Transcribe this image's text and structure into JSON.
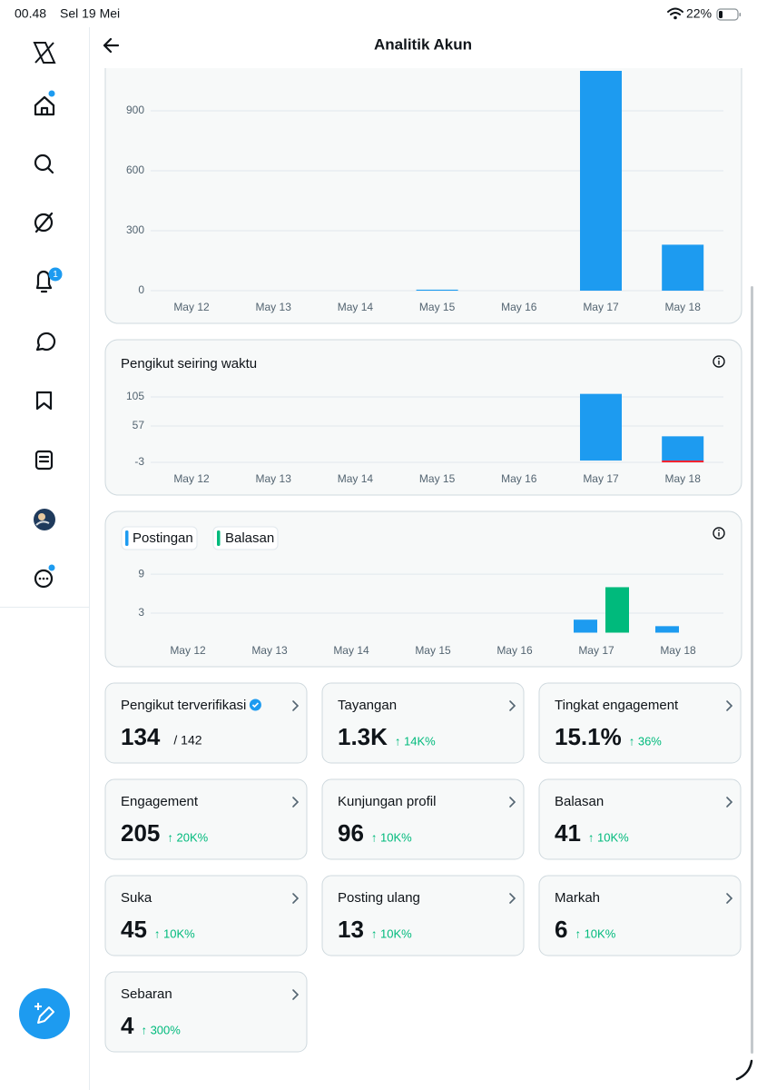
{
  "status_bar": {
    "time": "00.48",
    "date": "Sel 19 Mei",
    "battery": "22%"
  },
  "sidebar": {
    "notification_badge": "1"
  },
  "header": {
    "title": "Analitik Akun"
  },
  "charts": [
    {
      "type": "bar",
      "categories": [
        "May 12",
        "May 13",
        "May 14",
        "May 15",
        "May 16",
        "May 17",
        "May 18"
      ],
      "values": [
        0,
        0,
        0,
        5,
        0,
        1100,
        230
      ],
      "color": "#1d9bf0",
      "ylim": [
        0,
        1100
      ],
      "yticks": [
        0,
        300,
        600,
        900
      ],
      "grid": true
    },
    {
      "type": "bar",
      "title": "Pengikut seiring waktu",
      "categories": [
        "May 12",
        "May 13",
        "May 14",
        "May 15",
        "May 16",
        "May 17",
        "May 18"
      ],
      "series": [
        {
          "color": "#1d9bf0",
          "values": [
            0,
            0,
            0,
            0,
            0,
            110,
            40
          ]
        },
        {
          "color": "#f4212e",
          "values": [
            0,
            0,
            0,
            0,
            0,
            0,
            -3
          ]
        }
      ],
      "ylim": [
        -4,
        112
      ],
      "yticks": [
        -3,
        57,
        105
      ],
      "grid": true
    },
    {
      "type": "grouped-bar",
      "categories": [
        "May 12",
        "May 13",
        "May 14",
        "May 15",
        "May 16",
        "May 17",
        "May 18"
      ],
      "series": [
        {
          "name": "Postingan",
          "color": "#1d9bf0",
          "values": [
            0,
            0,
            0,
            0,
            0,
            2,
            1
          ]
        },
        {
          "name": "Balasan",
          "color": "#00ba7c",
          "values": [
            0,
            0,
            0,
            0,
            0,
            7,
            0
          ]
        }
      ],
      "ylim": [
        0,
        10
      ],
      "yticks": [
        3,
        9
      ],
      "grid": true
    }
  ],
  "stats": [
    {
      "title": "Pengikut terverifikasi",
      "value": 134,
      "total": "/ 142"
    },
    {
      "title": "Tayangan",
      "value": "1.3K",
      "change": "↑ 14K%"
    },
    {
      "title": "Tingkat engagement",
      "value": "15.1%",
      "change": "↑ 36%"
    },
    {
      "title": "Engagement",
      "value": 205,
      "change": "↑ 20K%"
    },
    {
      "title": "Kunjungan profil",
      "value": 96,
      "change": "↑ 10K%"
    },
    {
      "title": "Balasan",
      "value": 41,
      "change": "↑ 10K%"
    },
    {
      "title": "Suka",
      "value": 45,
      "change": "↑ 10K%"
    },
    {
      "title": "Posting ulang",
      "value": 13,
      "change": "↑ 10K%"
    },
    {
      "title": "Markah",
      "value": 6,
      "change": "↑ 10K%"
    },
    {
      "title": "Sebaran",
      "value": 4,
      "change": "↑ 300%"
    }
  ]
}
